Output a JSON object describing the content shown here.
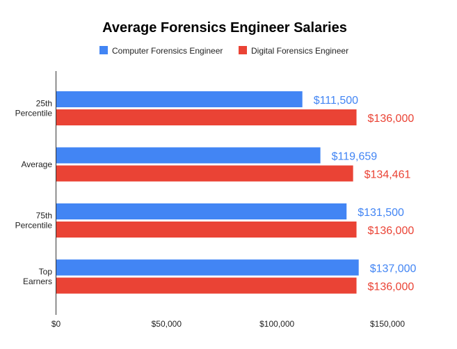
{
  "chart_data": {
    "type": "bar",
    "orientation": "horizontal",
    "title": "Average Forensics Engineer Salaries",
    "categories": [
      [
        "25th",
        "Percentile"
      ],
      [
        "Average"
      ],
      [
        "75th",
        "Percentile"
      ],
      [
        "Top",
        "Earners"
      ]
    ],
    "series": [
      {
        "name": "Computer Forensics Engineer",
        "color": "#4285f4",
        "values": [
          111500,
          119659,
          131500,
          137000
        ],
        "labels": [
          "$111,500",
          "$119,659",
          "$131,500",
          "$137,000"
        ]
      },
      {
        "name": "Digital Forensics Engineer",
        "color": "#ea4335",
        "values": [
          136000,
          134461,
          136000,
          136000
        ],
        "labels": [
          "$136,000",
          "$134,461",
          "$136,000",
          "$136,000"
        ]
      }
    ],
    "xlim": [
      0,
      175000
    ],
    "ticks": [
      0,
      50000,
      100000,
      150000
    ],
    "tick_labels": [
      "$0",
      "$50,000",
      "$100,000",
      "$150,000"
    ],
    "grid": false,
    "legend_position": "top"
  }
}
